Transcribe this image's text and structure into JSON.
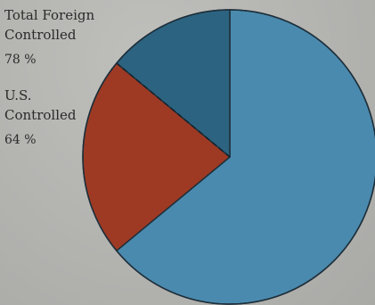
{
  "labels": {
    "foreign": {
      "line1": "Total Foreign",
      "line2": "Controlled",
      "pct": "78 %"
    },
    "us": {
      "line1": "U.S.",
      "line2": "Controlled",
      "pct": "64 %"
    }
  },
  "chart_data": {
    "type": "pie",
    "title": "",
    "slices": [
      {
        "label": "",
        "value": 64,
        "color": "#4a8aae"
      },
      {
        "label": "",
        "value": 22,
        "color": "#9e3a24"
      },
      {
        "label": "",
        "value": 14,
        "color": "#2c6380"
      }
    ],
    "start_angle_deg": 0,
    "direction": "clockwise",
    "dashed_divider_after_slice": 2,
    "stroke_color": "#1e2f3a"
  }
}
